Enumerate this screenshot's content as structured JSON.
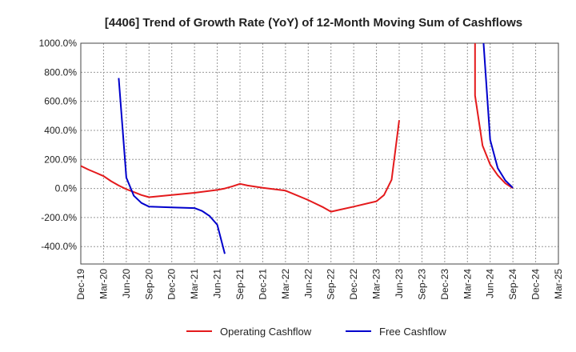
{
  "chart_data": {
    "type": "line",
    "title": "[4406]  Trend of Growth Rate (YoY) of 12-Month Moving Sum of Cashflows",
    "xlabel": "",
    "ylabel": "",
    "x_ticks": [
      "Dec-19",
      "Mar-20",
      "Jun-20",
      "Sep-20",
      "Dec-20",
      "Mar-21",
      "Jun-21",
      "Sep-21",
      "Dec-21",
      "Mar-22",
      "Jun-22",
      "Sep-22",
      "Dec-22",
      "Mar-23",
      "Jun-23",
      "Sep-23",
      "Dec-23",
      "Mar-24",
      "Jun-24",
      "Sep-24",
      "Dec-24",
      "Mar-25"
    ],
    "y_ticks": [
      "1000.0%",
      "800.0%",
      "600.0%",
      "400.0%",
      "200.0%",
      "0.0%",
      "-200.0%",
      "-400.0%"
    ],
    "y_tick_values": [
      1000,
      800,
      600,
      400,
      200,
      0,
      -200,
      -400
    ],
    "ylim": [
      -520,
      1000
    ],
    "grid": true,
    "legend_position": "bottom",
    "series": [
      {
        "name": "Operating Cashflow",
        "color": "#e41a1c",
        "points": [
          [
            "Dec-19",
            155
          ],
          [
            "Jan-20",
            130
          ],
          [
            "Feb-20",
            108
          ],
          [
            "Mar-20",
            85
          ],
          [
            "Apr-20",
            50
          ],
          [
            "May-20",
            20
          ],
          [
            "Jun-20",
            -5
          ],
          [
            "Jul-20",
            -25
          ],
          [
            "Aug-20",
            -45
          ],
          [
            "Sep-20",
            -60
          ],
          [
            "Dec-20",
            -45
          ],
          [
            "Mar-21",
            -30
          ],
          [
            "Jun-21",
            -10
          ],
          [
            "Jul-21",
            0
          ],
          [
            "Aug-21",
            15
          ],
          [
            "Sep-21",
            32
          ],
          [
            "Oct-21",
            20
          ],
          [
            "Dec-21",
            5
          ],
          [
            "Mar-22",
            -15
          ],
          [
            "Jun-22",
            -80
          ],
          [
            "Aug-22",
            -130
          ],
          [
            "Sep-22",
            -160
          ],
          [
            "Oct-22",
            -148
          ],
          [
            "Dec-22",
            -125
          ],
          [
            "Mar-23",
            -88
          ],
          [
            "Apr-23",
            -45
          ],
          [
            "May-23",
            60
          ],
          [
            "Jun-23",
            470
          ]
        ]
      },
      {
        "name": "Operating Cashflow",
        "color": "#e41a1c",
        "points": [
          [
            "Apr-24",
            1100
          ],
          [
            "Apr-24",
            640
          ],
          [
            "May-24",
            295
          ],
          [
            "Jun-24",
            165
          ],
          [
            "Jul-24",
            90
          ],
          [
            "Aug-24",
            35
          ],
          [
            "Sep-24",
            2
          ]
        ]
      },
      {
        "name": "Free Cashflow",
        "color": "#0000cc",
        "points": [
          [
            "May-20",
            760
          ],
          [
            "Jun-20",
            75
          ],
          [
            "Jul-20",
            -50
          ],
          [
            "Aug-20",
            -100
          ],
          [
            "Sep-20",
            -125
          ],
          [
            "Dec-20",
            -130
          ],
          [
            "Mar-21",
            -135
          ],
          [
            "Apr-21",
            -155
          ],
          [
            "May-21",
            -190
          ],
          [
            "Jun-21",
            -250
          ],
          [
            "Jul-21",
            -450
          ]
        ]
      },
      {
        "name": "Free Cashflow",
        "color": "#0000cc",
        "points": [
          [
            "May-24",
            1100
          ],
          [
            "Jun-24",
            335
          ],
          [
            "Jul-24",
            140
          ],
          [
            "Aug-24",
            55
          ],
          [
            "Sep-24",
            5
          ]
        ]
      }
    ],
    "legend": [
      {
        "name": "Operating Cashflow",
        "color": "#e41a1c"
      },
      {
        "name": "Free Cashflow",
        "color": "#0000cc"
      }
    ]
  }
}
